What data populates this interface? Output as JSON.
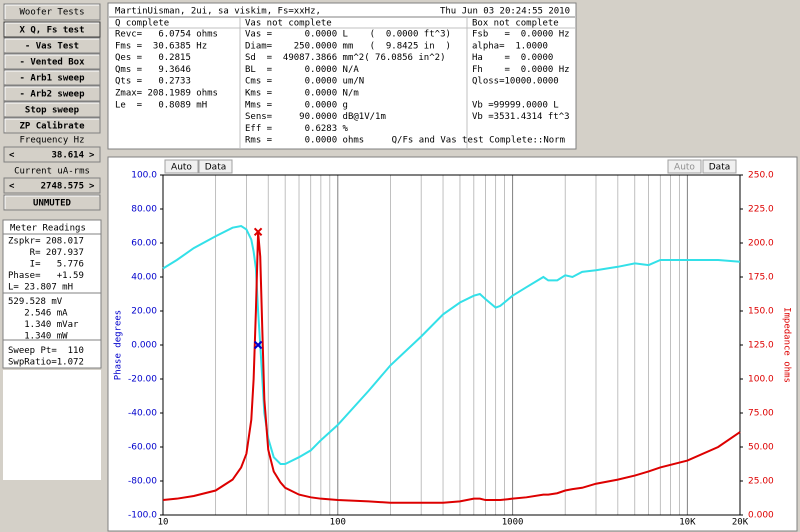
{
  "left_panel": {
    "title": "Woofer Tests",
    "buttons": [
      "X Q, Fs test",
      "- Vas Test",
      "- Vented Box",
      "- Arb1 sweep",
      "- Arb2 sweep",
      "Stop sweep",
      "ZP Calibrate"
    ],
    "frequency": {
      "label": "Frequency Hz",
      "prev": "<",
      "value": "38.614",
      "next": ">"
    },
    "current": {
      "label": "Current uA-rms",
      "prev": "<",
      "value": "2748.575",
      "next": ">"
    },
    "mute": "UNMUTED",
    "meter": {
      "title": "Meter Readings",
      "lines": [
        "Zspkr= 208.017",
        "    R= 207.937",
        "    I=   5.776",
        "Phase=   +1.59",
        "L= 23.807 mH",
        "529.528 mV",
        "   2.546 mA",
        "   1.340 mVar",
        "   1.340 mW",
        "Sweep Pt=  110",
        "SwpRatio=1.072"
      ]
    }
  },
  "report": {
    "header": "MartinUisman, 2ui, sa viskim, Fs=xxHz,",
    "timestamp": "Thu Jun 03 20:24:55 2010",
    "columns": [
      {
        "title": "Q complete",
        "lines": [
          "Revc=   6.0754 ohms",
          "Fms =  30.6385 Hz",
          "Qes =   0.2815",
          "Qms =   9.3646",
          "Qts =   0.2733",
          "Zmax= 208.1989 ohms",
          "Le  =   0.8089 mH"
        ]
      },
      {
        "title": "Vas not complete",
        "lines": [
          "Vas =      0.0000 L    (  0.0000 ft^3)",
          "Diam=    250.0000 mm   (  9.8425 in  )",
          "Sd  =  49087.3866 mm^2( 76.0856 in^2)",
          "BL  =      0.0000 N/A",
          "Cms =      0.0000 um/N",
          "Kms =      0.0000 N/m",
          "Mms =      0.0000 g",
          "Sens=     90.0000 dB@1V/1m",
          "Eff =      0.6283 %",
          "Rms =      0.0000 ohms"
        ]
      },
      {
        "title": "Box not complete",
        "lines": [
          "Fsb   =  0.0000 Hz",
          "alpha=  1.0000",
          "Ha    =  0.0000",
          "Fh    =  0.0000 Hz",
          "Qloss=10000.0000",
          "",
          "Vb =99999.0000 L",
          "Vb =3531.4314 ft^3"
        ]
      }
    ],
    "status": "Q/Fs and Vas test Complete::Norm"
  },
  "chart_toolbar": {
    "left": [
      "Auto",
      "Data"
    ],
    "right": [
      "Auto",
      "Data"
    ]
  },
  "chart_data": {
    "type": "line",
    "xlabel": null,
    "ylabel": "Phase degrees",
    "y2label": "Impedance ohms",
    "xscale": "log",
    "xlim": [
      10,
      20000
    ],
    "xticks": [
      10,
      100,
      1000,
      {
        "value": 10000,
        "label": "10K"
      },
      {
        "value": 20000,
        "label": "20K"
      }
    ],
    "ylim": [
      -100,
      100
    ],
    "yticks": [
      {
        "value": 100,
        "label": "100.0"
      },
      {
        "value": 80,
        "label": "80.00"
      },
      {
        "value": 60,
        "label": "60.00"
      },
      {
        "value": 40,
        "label": "40.00"
      },
      {
        "value": 20,
        "label": "20.00"
      },
      {
        "value": 0,
        "label": "0.000"
      },
      {
        "value": -20,
        "label": "-20.00"
      },
      {
        "value": -40,
        "label": "-40.00"
      },
      {
        "value": -60,
        "label": "-60.00"
      },
      {
        "value": -80,
        "label": "-80.00"
      },
      {
        "value": -100,
        "label": "-100.0"
      }
    ],
    "y2lim": [
      0,
      250
    ],
    "y2ticks": [
      {
        "value": 250,
        "label": "250.0"
      },
      {
        "value": 225,
        "label": "225.0"
      },
      {
        "value": 200,
        "label": "200.0"
      },
      {
        "value": 175,
        "label": "175.0"
      },
      {
        "value": 150,
        "label": "150.0"
      },
      {
        "value": 125,
        "label": "125.0"
      },
      {
        "value": 100,
        "label": "100.0"
      },
      {
        "value": 75,
        "label": "75.00"
      },
      {
        "value": 50,
        "label": "50.00"
      },
      {
        "value": 25,
        "label": "25.00"
      },
      {
        "value": 0,
        "label": "0.000"
      }
    ],
    "ycolor": "#0000cc",
    "y2color": "#dd0000",
    "minor_grid": true,
    "series": [
      {
        "name": "Phase",
        "axis": "y",
        "color": "#33e0e8",
        "x": [
          10,
          12,
          15,
          20,
          25,
          28,
          30,
          32,
          33,
          34,
          35,
          36,
          37,
          38,
          40,
          43,
          47,
          50,
          60,
          70,
          80,
          100,
          150,
          200,
          300,
          400,
          500,
          600,
          650,
          700,
          800,
          850,
          1000,
          1200,
          1500,
          1600,
          1800,
          2000,
          2200,
          2500,
          3000,
          4000,
          5000,
          6000,
          7000,
          10000,
          15000,
          20000
        ],
        "values": [
          45,
          50,
          57,
          64,
          69,
          70,
          68,
          62,
          55,
          45,
          20,
          0,
          -20,
          -40,
          -55,
          -66,
          -70,
          -70,
          -66,
          -62,
          -56,
          -47,
          -27,
          -12,
          5,
          18,
          25,
          29,
          30,
          27,
          22,
          23,
          29,
          34,
          40,
          38,
          38,
          41,
          40,
          43,
          44,
          46,
          48,
          47,
          50,
          50,
          50,
          49
        ]
      },
      {
        "name": "Impedance",
        "axis": "y2",
        "color": "#dd0000",
        "x": [
          10,
          12,
          15,
          20,
          25,
          28,
          30,
          32,
          33,
          34,
          35,
          36,
          37,
          38,
          40,
          43,
          47,
          50,
          60,
          70,
          80,
          100,
          150,
          200,
          300,
          400,
          500,
          600,
          650,
          700,
          800,
          850,
          1000,
          1200,
          1500,
          1600,
          1800,
          2000,
          2200,
          2500,
          3000,
          4000,
          5000,
          6000,
          7000,
          10000,
          15000,
          20000
        ],
        "values": [
          11,
          12,
          14,
          18,
          26,
          35,
          45,
          70,
          100,
          150,
          208,
          190,
          136,
          85,
          48,
          32,
          24,
          20,
          15,
          13,
          12,
          11,
          10,
          9,
          9,
          9,
          10,
          12,
          12,
          11,
          11,
          11,
          12,
          13,
          15,
          15,
          16,
          18,
          19,
          20,
          23,
          26,
          29,
          32,
          35,
          40,
          50,
          61
        ]
      }
    ],
    "markers": [
      {
        "x": 35,
        "y": 208.2,
        "axis": "y2",
        "color": "#dd0000"
      },
      {
        "x": 35,
        "y": 0,
        "axis": "y",
        "color": "#0000cc"
      }
    ]
  }
}
